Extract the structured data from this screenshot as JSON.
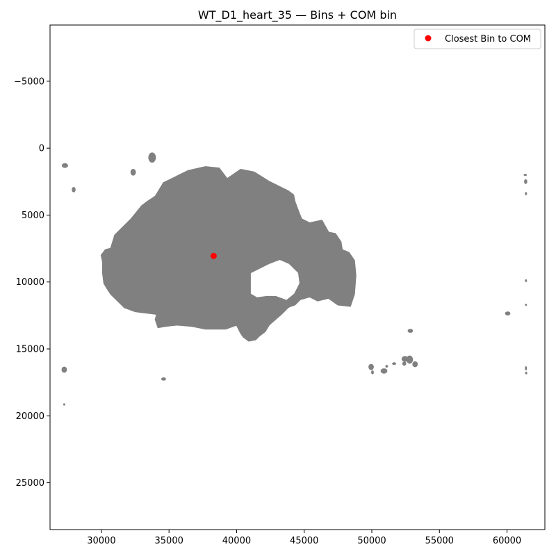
{
  "chart_data": {
    "type": "scatter",
    "title": "WT_D1_heart_35 — Bins + COM bin",
    "xlabel": "",
    "ylabel": "",
    "xlim": [
      26200,
      62800
    ],
    "ylim": [
      28500,
      -9200
    ],
    "y_inverted": true,
    "grid": false,
    "xticks": [
      30000,
      35000,
      40000,
      45000,
      50000,
      55000,
      60000
    ],
    "xtick_labels": [
      "30000",
      "35000",
      "40000",
      "45000",
      "50000",
      "55000",
      "60000"
    ],
    "yticks": [
      -5000,
      0,
      5000,
      10000,
      15000,
      20000,
      25000
    ],
    "ytick_labels": [
      "−5000",
      "0",
      "5000",
      "10000",
      "15000",
      "20000",
      "25000"
    ],
    "legend": {
      "position": "upper right",
      "entries": [
        {
          "label": "Closest Bin to COM",
          "color": "#ff0000"
        }
      ]
    },
    "series": [
      {
        "name": "Bins",
        "color": "#808080",
        "region_outline": [
          [
            36400,
            1700
          ],
          [
            37700,
            1400
          ],
          [
            38700,
            1500
          ],
          [
            39300,
            2300
          ],
          [
            40300,
            1600
          ],
          [
            41300,
            1800
          ],
          [
            42400,
            2500
          ],
          [
            43200,
            2900
          ],
          [
            43800,
            3200
          ],
          [
            44200,
            3500
          ],
          [
            44300,
            4000
          ],
          [
            44600,
            4800
          ],
          [
            44800,
            5300
          ],
          [
            45400,
            5600
          ],
          [
            46300,
            5400
          ],
          [
            46800,
            6300
          ],
          [
            47300,
            6400
          ],
          [
            47700,
            7000
          ],
          [
            47800,
            7600
          ],
          [
            48300,
            7800
          ],
          [
            48700,
            8400
          ],
          [
            48800,
            9500
          ],
          [
            48700,
            10900
          ],
          [
            48400,
            11800
          ],
          [
            47500,
            11700
          ],
          [
            46800,
            11200
          ],
          [
            46000,
            11400
          ],
          [
            45400,
            11100
          ],
          [
            44700,
            11300
          ],
          [
            44300,
            11700
          ],
          [
            44000,
            11800
          ],
          [
            43800,
            11900
          ],
          [
            43300,
            12400
          ],
          [
            42400,
            13200
          ],
          [
            42100,
            13700
          ],
          [
            41700,
            14000
          ],
          [
            41400,
            14300
          ],
          [
            40900,
            14400
          ],
          [
            40500,
            14100
          ],
          [
            40300,
            13800
          ],
          [
            40000,
            13200
          ],
          [
            39200,
            13500
          ],
          [
            37700,
            13500
          ],
          [
            36700,
            13300
          ],
          [
            35600,
            13200
          ],
          [
            34700,
            13300
          ],
          [
            34200,
            13400
          ],
          [
            34000,
            12800
          ],
          [
            34100,
            12400
          ],
          [
            33300,
            12300
          ],
          [
            32500,
            12200
          ],
          [
            31700,
            11900
          ],
          [
            31300,
            11500
          ],
          [
            30900,
            11100
          ],
          [
            30700,
            10900
          ],
          [
            30500,
            10600
          ],
          [
            30200,
            10100
          ],
          [
            30100,
            9300
          ],
          [
            30100,
            8500
          ],
          [
            30000,
            8000
          ],
          [
            30300,
            7600
          ],
          [
            30700,
            7500
          ],
          [
            31000,
            6500
          ],
          [
            31600,
            5900
          ],
          [
            32200,
            5300
          ],
          [
            32600,
            4800
          ],
          [
            33000,
            4300
          ],
          [
            33400,
            4000
          ],
          [
            34000,
            3600
          ],
          [
            34600,
            2600
          ],
          [
            35400,
            2200
          ]
        ],
        "hole_outline": [
          [
            41000,
            9300
          ],
          [
            42400,
            8600
          ],
          [
            43200,
            8300
          ],
          [
            43900,
            8600
          ],
          [
            44600,
            9300
          ],
          [
            44700,
            10100
          ],
          [
            44300,
            10900
          ],
          [
            43700,
            11400
          ],
          [
            42900,
            11100
          ],
          [
            42200,
            11100
          ],
          [
            41500,
            11200
          ],
          [
            41000,
            10900
          ],
          [
            41000,
            10100
          ]
        ],
        "clusters": [
          [
            27300,
            1300,
            230,
            180
          ],
          [
            27950,
            3100,
            140,
            200
          ],
          [
            32350,
            1800,
            200,
            250
          ],
          [
            33750,
            700,
            280,
            380
          ],
          [
            27250,
            16550,
            200,
            230
          ],
          [
            27250,
            19150,
            80,
            80
          ],
          [
            34600,
            17250,
            180,
            120
          ],
          [
            49950,
            16350,
            200,
            230
          ],
          [
            50050,
            16750,
            100,
            150
          ],
          [
            50900,
            16650,
            250,
            200
          ],
          [
            51100,
            16300,
            100,
            100
          ],
          [
            51650,
            16100,
            150,
            100
          ],
          [
            52400,
            16100,
            150,
            150
          ],
          [
            52450,
            15750,
            250,
            220
          ],
          [
            52800,
            15800,
            250,
            300
          ],
          [
            53200,
            16150,
            200,
            220
          ],
          [
            52850,
            13650,
            200,
            150
          ],
          [
            60050,
            12350,
            200,
            150
          ],
          [
            61350,
            2000,
            120,
            80
          ],
          [
            61380,
            2500,
            120,
            180
          ],
          [
            61400,
            3400,
            80,
            120
          ],
          [
            61400,
            9900,
            80,
            100
          ],
          [
            61400,
            11700,
            60,
            60
          ],
          [
            61400,
            16450,
            70,
            160
          ],
          [
            61420,
            16800,
            60,
            100
          ]
        ]
      },
      {
        "name": "Closest Bin to COM",
        "color": "#ff0000",
        "x": [
          38300
        ],
        "y": [
          8050
        ]
      }
    ]
  }
}
